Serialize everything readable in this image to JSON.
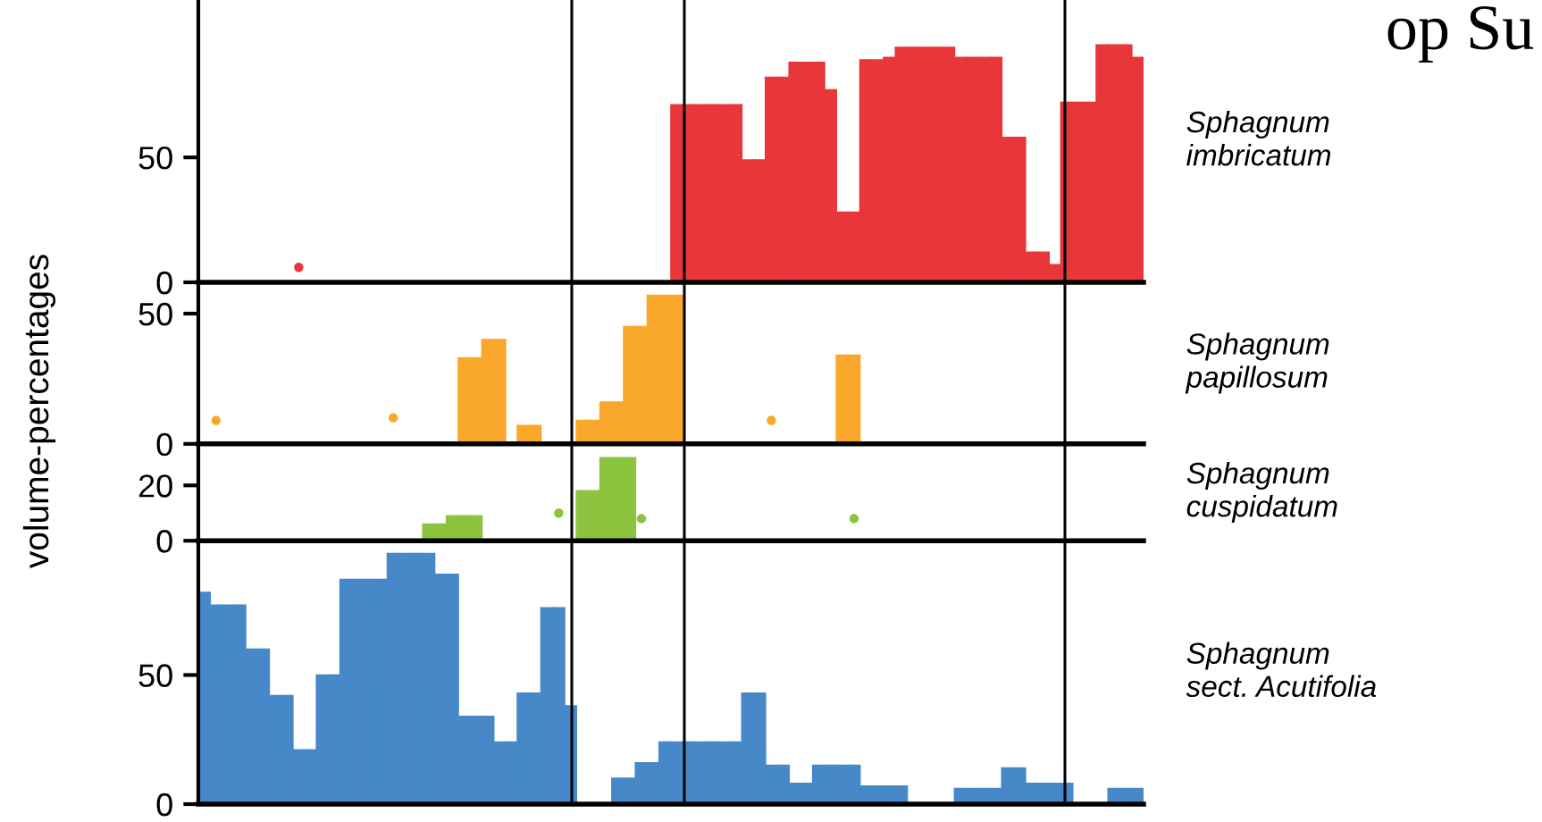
{
  "chart_data": [
    {
      "type": "bar",
      "categories": [
        null,
        null,
        null,
        null,
        null,
        null,
        null,
        null,
        null,
        null,
        null,
        null,
        null,
        null,
        null,
        null,
        null,
        null,
        null,
        null,
        null,
        null,
        null,
        null,
        null,
        null,
        null,
        null,
        null,
        null,
        null,
        null,
        null,
        null,
        null,
        null,
        null,
        null,
        null,
        null,
        null,
        null,
        null,
        null,
        null,
        null,
        null,
        null,
        null,
        null,
        null,
        null,
        null,
        null,
        null,
        null,
        null,
        null,
        null,
        null,
        null,
        null,
        null,
        null,
        null,
        null,
        null,
        null,
        null,
        null,
        null,
        null,
        null,
        null,
        null,
        null,
        null,
        null,
        null,
        null
      ],
      "annotations": [
        "op Su"
      ],
      "ylim": [
        0,
        113
      ],
      "yticks": [
        0,
        50
      ],
      "series": [
        {
          "name": "Sphagnum\nimbricatum",
          "color": "#e8363b",
          "values": [
            null,
            null,
            null,
            null,
            null,
            null,
            null,
            null,
            null,
            null,
            null,
            null,
            null,
            null,
            null,
            null,
            null,
            null,
            null,
            null,
            null,
            null,
            null,
            null,
            null,
            null,
            null,
            null,
            null,
            null,
            null,
            null,
            null,
            null,
            null,
            null,
            null,
            null,
            null,
            null,
            71,
            71,
            71,
            71,
            71,
            71,
            49,
            49,
            82,
            82,
            88,
            88,
            88,
            77,
            28,
            28,
            89,
            89,
            90,
            94,
            94,
            94,
            94,
            94,
            90,
            90,
            90,
            90,
            58,
            58,
            12,
            12,
            7,
            72,
            72,
            72,
            95,
            95,
            95,
            90
          ]
        },
        {
          "type": "scatter",
          "color": "#e8363b",
          "marker": "circle",
          "values": [
            null,
            null,
            null,
            null,
            null,
            null,
            null,
            null,
            6,
            null,
            null,
            null,
            null,
            null,
            null,
            null,
            null,
            null,
            null,
            null,
            null,
            null,
            null,
            null,
            null,
            null,
            null,
            null,
            null,
            null,
            null,
            null,
            null,
            null,
            null,
            null,
            null,
            null,
            null,
            null,
            null,
            null,
            null,
            null,
            null,
            null,
            null,
            null,
            null,
            null,
            null,
            null,
            null,
            null,
            null,
            null,
            null,
            null,
            null,
            null,
            null,
            null,
            null,
            null,
            null,
            null,
            null,
            null,
            null,
            null,
            null,
            null,
            null,
            null,
            null,
            null,
            null,
            null,
            null,
            null
          ]
        }
      ]
    },
    {
      "type": "bar",
      "categories": [
        null,
        null,
        null,
        null,
        null,
        null,
        null,
        null,
        null,
        null,
        null,
        null,
        null,
        null,
        null,
        null,
        null,
        null,
        null,
        null,
        null,
        null,
        null,
        null,
        null,
        null,
        null,
        null,
        null,
        null,
        null,
        null,
        null,
        null,
        null,
        null,
        null,
        null,
        null,
        null,
        null,
        null,
        null,
        null,
        null,
        null,
        null,
        null,
        null,
        null,
        null,
        null,
        null,
        null,
        null,
        null,
        null,
        null,
        null,
        null,
        null,
        null,
        null,
        null,
        null,
        null,
        null,
        null,
        null,
        null,
        null,
        null,
        null,
        null,
        null,
        null,
        null,
        null,
        null,
        null
      ],
      "ylabel": "volume-percentages",
      "ylim": [
        0,
        62
      ],
      "yticks": [
        0,
        50
      ],
      "series": [
        {
          "name": "Sphagnum\npapillosum",
          "color": "#f9a82b",
          "values": [
            null,
            null,
            null,
            null,
            null,
            null,
            null,
            null,
            null,
            null,
            null,
            null,
            null,
            null,
            null,
            null,
            null,
            null,
            null,
            null,
            null,
            null,
            33,
            33,
            40,
            40,
            null,
            7,
            7,
            null,
            null,
            null,
            9,
            9,
            16,
            16,
            45,
            45,
            57,
            57,
            57,
            null,
            null,
            null,
            null,
            null,
            null,
            null,
            null,
            null,
            null,
            null,
            null,
            null,
            34,
            34,
            null,
            null,
            null,
            null,
            null,
            null,
            null,
            null,
            null,
            null,
            null,
            null,
            null,
            null,
            null,
            null,
            null,
            null,
            null,
            null,
            null,
            null,
            null,
            null
          ]
        },
        {
          "type": "scatter",
          "color": "#f9a82b",
          "marker": "circle",
          "values": [
            null,
            9,
            null,
            null,
            null,
            null,
            null,
            null,
            null,
            null,
            null,
            null,
            null,
            null,
            null,
            null,
            10,
            null,
            null,
            null,
            null,
            null,
            null,
            null,
            null,
            null,
            null,
            null,
            null,
            null,
            null,
            null,
            null,
            null,
            null,
            null,
            null,
            null,
            null,
            null,
            null,
            null,
            null,
            null,
            null,
            null,
            null,
            null,
            9,
            null,
            null,
            null,
            null,
            null,
            null,
            null,
            null,
            null,
            null,
            null,
            null,
            null,
            null,
            null,
            null,
            null,
            null,
            null,
            null,
            null,
            null,
            null,
            null,
            null,
            null,
            null,
            null,
            null,
            null,
            null
          ]
        }
      ]
    },
    {
      "type": "bar",
      "categories": [
        null,
        null,
        null,
        null,
        null,
        null,
        null,
        null,
        null,
        null,
        null,
        null,
        null,
        null,
        null,
        null,
        null,
        null,
        null,
        null,
        null,
        null,
        null,
        null,
        null,
        null,
        null,
        null,
        null,
        null,
        null,
        null,
        null,
        null,
        null,
        null,
        null,
        null,
        null,
        null,
        null,
        null,
        null,
        null,
        null,
        null,
        null,
        null,
        null,
        null,
        null,
        null,
        null,
        null,
        null,
        null,
        null,
        null,
        null,
        null,
        null,
        null,
        null,
        null,
        null,
        null,
        null,
        null,
        null,
        null,
        null,
        null,
        null,
        null,
        null,
        null,
        null,
        null,
        null,
        null
      ],
      "ylim": [
        0,
        35
      ],
      "yticks": [
        0,
        20
      ],
      "series": [
        {
          "name": "Sphagnum\ncuspidatum",
          "color": "#8cc43f",
          "values": [
            null,
            null,
            null,
            null,
            null,
            null,
            null,
            null,
            null,
            null,
            null,
            null,
            null,
            null,
            null,
            null,
            null,
            null,
            null,
            6,
            6,
            9,
            9,
            9,
            null,
            null,
            null,
            null,
            null,
            null,
            null,
            null,
            18,
            18,
            30,
            30,
            30,
            null,
            null,
            null,
            null,
            null,
            null,
            null,
            null,
            null,
            null,
            null,
            null,
            null,
            null,
            null,
            null,
            null,
            null,
            null,
            null,
            null,
            null,
            null,
            null,
            null,
            null,
            null,
            null,
            null,
            null,
            null,
            null,
            null,
            null,
            null,
            null,
            null,
            null,
            null,
            null,
            null,
            null,
            null
          ]
        },
        {
          "type": "scatter",
          "color": "#8cc43f",
          "marker": "circle",
          "values": [
            null,
            null,
            null,
            null,
            null,
            null,
            null,
            null,
            null,
            null,
            null,
            null,
            null,
            null,
            null,
            null,
            null,
            null,
            null,
            null,
            null,
            null,
            null,
            null,
            null,
            null,
            null,
            null,
            null,
            null,
            10,
            null,
            null,
            null,
            null,
            null,
            null,
            8,
            null,
            null,
            null,
            null,
            null,
            null,
            null,
            null,
            null,
            null,
            null,
            null,
            null,
            null,
            null,
            null,
            null,
            8,
            null,
            null,
            null,
            null,
            null,
            null,
            null,
            null,
            null,
            null,
            null,
            null,
            null,
            null,
            null,
            null,
            null,
            null,
            null,
            null,
            null,
            null,
            null,
            null
          ]
        }
      ]
    },
    {
      "type": "bar",
      "categories": [
        null,
        null,
        null,
        null,
        null,
        null,
        null,
        null,
        null,
        null,
        null,
        null,
        null,
        null,
        null,
        null,
        null,
        null,
        null,
        null,
        null,
        null,
        null,
        null,
        null,
        null,
        null,
        null,
        null,
        null,
        null,
        null,
        null,
        null,
        null,
        null,
        null,
        null,
        null,
        null,
        null,
        null,
        null,
        null,
        null,
        null,
        null,
        null,
        null,
        null,
        null,
        null,
        null,
        null,
        null,
        null,
        null,
        null,
        null,
        null,
        null,
        null,
        null,
        null,
        null,
        null,
        null,
        null,
        null,
        null,
        null,
        null,
        null,
        null,
        null,
        null,
        null,
        null,
        null,
        null
      ],
      "ylim": [
        0,
        102
      ],
      "yticks": [
        0,
        50
      ],
      "series": [
        {
          "name": "Sphagnum\nsect. Acutifolia",
          "color": "#4688c8",
          "values": [
            82,
            77,
            77,
            77,
            60,
            60,
            42,
            42,
            21,
            21,
            50,
            50,
            87,
            87,
            87,
            87,
            97,
            97,
            97,
            97,
            89,
            89,
            34,
            34,
            34,
            24,
            24,
            43,
            43,
            76,
            76,
            38,
            null,
            null,
            null,
            10,
            10,
            16,
            16,
            24,
            24,
            24,
            24,
            24,
            24,
            24,
            43,
            43,
            15,
            15,
            8,
            8,
            15,
            15,
            15,
            15,
            7,
            7,
            7,
            7,
            null,
            null,
            null,
            null,
            6,
            6,
            6,
            6,
            14,
            14,
            8,
            8,
            8,
            8,
            null,
            null,
            null,
            6,
            6,
            6
          ]
        }
      ]
    }
  ]
}
